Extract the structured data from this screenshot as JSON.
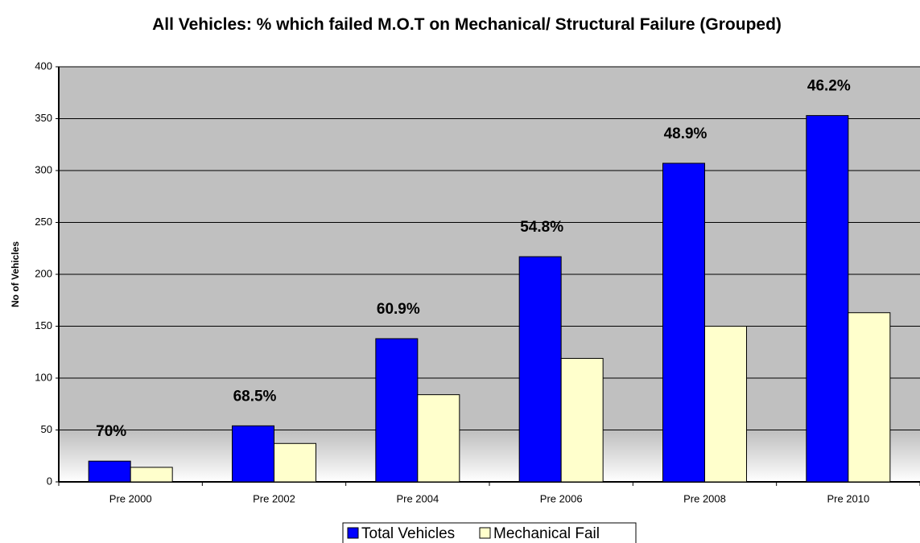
{
  "chart_data": {
    "type": "bar",
    "title": "All Vehicles: % which failed M.O.T on Mechanical/ Structural Failure (Grouped)",
    "y_label": "No of Vehicles",
    "categories": [
      "Pre 2000",
      "Pre 2002",
      "Pre 2004",
      "Pre 2006",
      "Pre 2008",
      "Pre 2010"
    ],
    "series": [
      {
        "name": "Total Vehicles",
        "color": "#0000ff",
        "values": [
          20,
          54,
          138,
          217,
          307,
          353
        ]
      },
      {
        "name": "Mechanical Fail",
        "color": "#ffffcc",
        "values": [
          14,
          37,
          84,
          119,
          150,
          163
        ]
      }
    ],
    "annotations": [
      "70%",
      "68.5%",
      "60.9%",
      "54.8%",
      "48.9%",
      "46.2%"
    ],
    "ylim": [
      0,
      400
    ],
    "yticks": [
      0,
      50,
      100,
      150,
      200,
      250,
      300,
      350,
      400
    ],
    "grid": true,
    "legend": "bottom"
  }
}
